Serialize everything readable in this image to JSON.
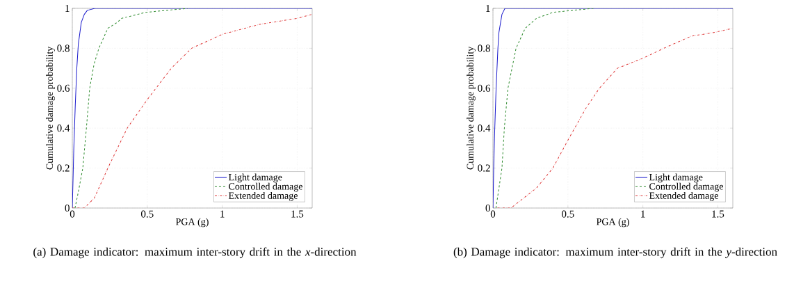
{
  "chart_data": [
    {
      "type": "line",
      "xlabel": "PGA (g)",
      "ylabel": "Cumulative damage probability",
      "xlim": [
        0,
        1.6
      ],
      "ylim": [
        0,
        1
      ],
      "xticks": [
        0,
        0.5,
        1,
        1.5
      ],
      "yticks": [
        0,
        0.2,
        0.4,
        0.6,
        0.8,
        1
      ],
      "grid": true,
      "legend": "bottom right",
      "annotations": [
        "(a) Damage indicator: maximum inter-story drift in the *x*-direction"
      ],
      "series": [
        {
          "name": "Light damage",
          "color": "#1a1acc",
          "line_style": "solid",
          "x": [
            0,
            0.005,
            0.01,
            0.02,
            0.03,
            0.04,
            0.06,
            0.08,
            0.1,
            0.15,
            1.6
          ],
          "values": [
            0,
            0.15,
            0.3,
            0.52,
            0.7,
            0.82,
            0.93,
            0.97,
            0.99,
            1,
            1
          ]
        },
        {
          "name": "Controlled damage",
          "color": "#2e8b2e",
          "line_style": "dashed",
          "x": [
            0.018,
            0.04,
            0.07,
            0.094,
            0.116,
            0.145,
            0.177,
            0.237,
            0.3,
            0.33,
            0.49,
            0.77
          ],
          "values": [
            0,
            0.08,
            0.2,
            0.4,
            0.6,
            0.72,
            0.8,
            0.9,
            0.93,
            0.95,
            0.98,
            1
          ]
        },
        {
          "name": "Extended damage",
          "color": "#dd3333",
          "line_style": "dashdot",
          "x": [
            0,
            0.08,
            0.147,
            0.237,
            0.366,
            0.497,
            0.66,
            0.796,
            1.0,
            1.25,
            1.5,
            1.6
          ],
          "values": [
            0,
            0,
            0.05,
            0.2,
            0.4,
            0.54,
            0.7,
            0.8,
            0.87,
            0.92,
            0.95,
            0.97
          ]
        }
      ]
    },
    {
      "type": "line",
      "xlabel": "PGA (g)",
      "ylabel": "Cumulative damage probability",
      "xlim": [
        0,
        1.6
      ],
      "ylim": [
        0,
        1
      ],
      "xticks": [
        0,
        0.5,
        1,
        1.5
      ],
      "yticks": [
        0,
        0.2,
        0.4,
        0.6,
        0.8,
        1
      ],
      "grid": true,
      "legend": "bottom right",
      "annotations": [
        "(b) Damage indicator: maximum inter-story drift in the *y*-direction"
      ],
      "series": [
        {
          "name": "Light damage",
          "color": "#1a1acc",
          "line_style": "solid",
          "x": [
            0,
            0.005,
            0.01,
            0.021,
            0.033,
            0.04,
            0.06,
            0.08,
            1.6
          ],
          "values": [
            0,
            0.2,
            0.35,
            0.6,
            0.8,
            0.88,
            0.97,
            1,
            1
          ]
        },
        {
          "name": "Controlled damage",
          "color": "#2e8b2e",
          "line_style": "dashed",
          "x": [
            0.02,
            0.06,
            0.076,
            0.1,
            0.154,
            0.215,
            0.29,
            0.4,
            0.67
          ],
          "values": [
            0,
            0.2,
            0.4,
            0.6,
            0.8,
            0.9,
            0.95,
            0.98,
            1
          ]
        },
        {
          "name": "Extended damage",
          "color": "#dd3333",
          "line_style": "dashdot",
          "x": [
            0.03,
            0.12,
            0.29,
            0.4,
            0.5,
            0.62,
            0.71,
            0.83,
            1.0,
            1.14,
            1.32,
            1.48,
            1.6
          ],
          "values": [
            0,
            0,
            0.1,
            0.2,
            0.34,
            0.5,
            0.6,
            0.7,
            0.75,
            0.8,
            0.86,
            0.88,
            0.9
          ]
        }
      ]
    }
  ]
}
